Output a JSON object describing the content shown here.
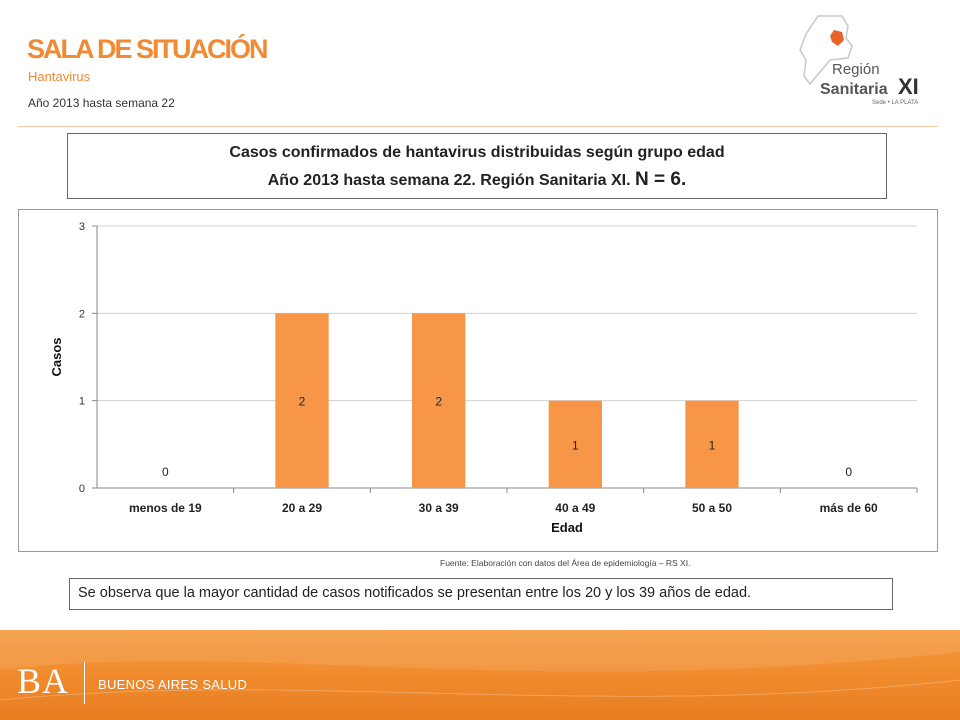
{
  "header": {
    "title": "SALA DE SITUACIÓN",
    "subtitle": "Hantavirus",
    "period": "Año 2013 hasta semana 22"
  },
  "logo": {
    "line1": "Región",
    "line2": "Sanitaria",
    "numeral": "XI",
    "tagline": "Sede • LA PLATA",
    "accent_color": "#f08a34"
  },
  "chart_title": {
    "line1": "Casos confirmados de hantavirus distribuidas según grupo edad",
    "line2_prefix": "Año 2013 hasta semana 22. Región Sanitaria XI.",
    "n_label": "N = 6."
  },
  "chart_data": {
    "type": "bar",
    "categories": [
      "menos de 19",
      "20 a 29",
      "30 a 39",
      "40 a 49",
      "50 a 50",
      "más de 60"
    ],
    "values": [
      0,
      2,
      2,
      1,
      1,
      0
    ],
    "data_labels": [
      "0",
      "2",
      "2",
      "1",
      "1",
      "0"
    ],
    "xlabel": "Edad",
    "ylabel": "Casos",
    "ylim": [
      0,
      3
    ],
    "yticks": [
      "0",
      "1",
      "2",
      "3"
    ],
    "grid": true,
    "bar_color": "#f79646"
  },
  "source_note": "Fuente: Elaboración con datos del Área de epidemiología – RS XI.",
  "observation": "Se observa que la mayor cantidad de casos notificados se presentan entre los 20 y los 39 años de edad.",
  "footer": {
    "brand": "BA",
    "org_name": "BUENOS AIRES SALUD"
  }
}
